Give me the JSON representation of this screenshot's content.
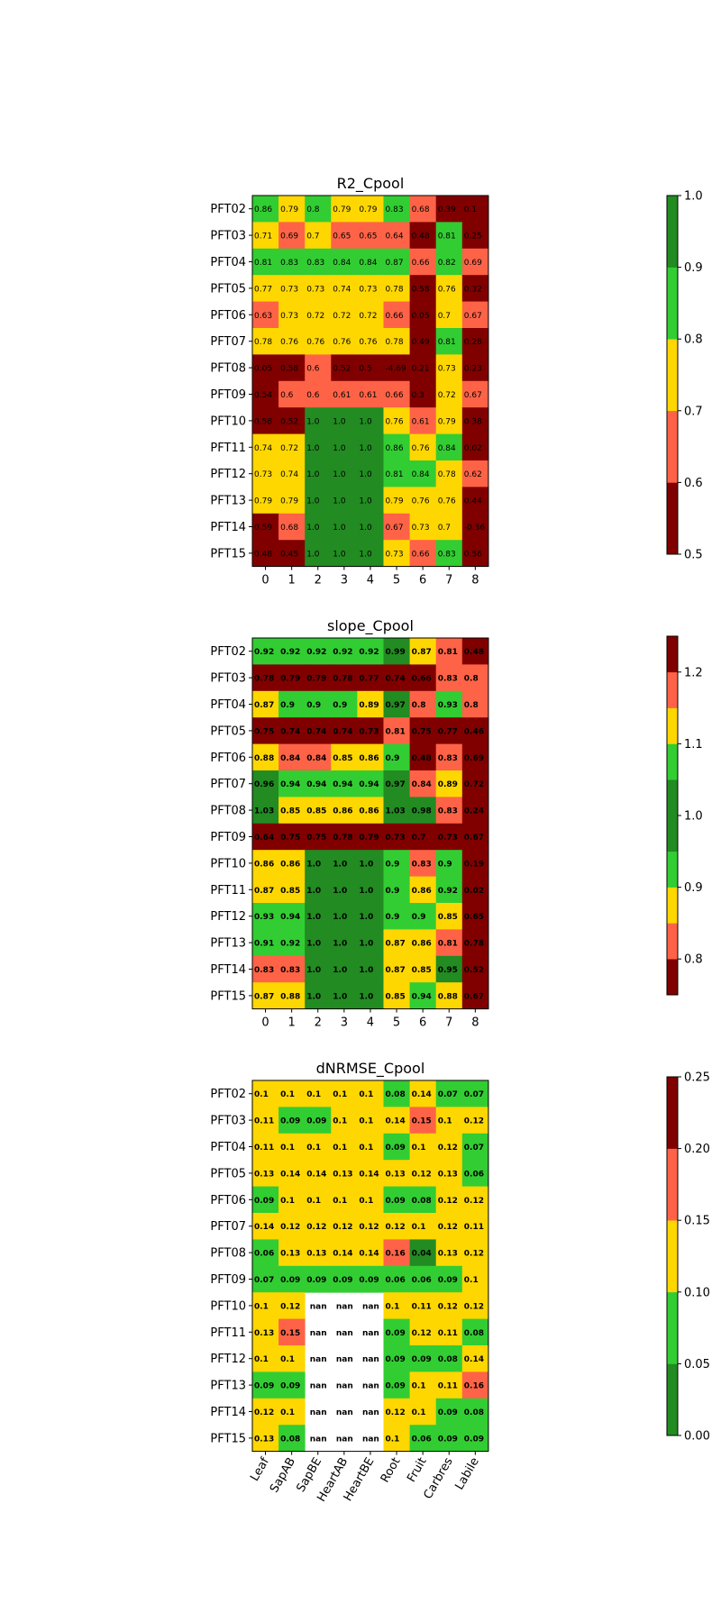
{
  "colors": {
    "dark_red": "#800000",
    "tomato": "#ff6347",
    "gold": "#ffd700",
    "lime_green": "#32cd32",
    "forest_green": "#228b22"
  },
  "chart_data": [
    {
      "type": "heatmap",
      "title": "R2_Cpool",
      "rows": [
        "PFT02",
        "PFT03",
        "PFT04",
        "PFT05",
        "PFT06",
        "PFT07",
        "PFT08",
        "PFT09",
        "PFT10",
        "PFT11",
        "PFT12",
        "PFT13",
        "PFT14",
        "PFT15"
      ],
      "columns": [
        "0",
        "1",
        "2",
        "3",
        "4",
        "5",
        "6",
        "7",
        "8"
      ],
      "values": [
        [
          0.86,
          0.79,
          0.8,
          0.79,
          0.79,
          0.83,
          0.68,
          0.39,
          0.1
        ],
        [
          0.71,
          0.69,
          0.7,
          0.65,
          0.65,
          0.64,
          0.48,
          0.81,
          0.25
        ],
        [
          0.81,
          0.83,
          0.83,
          0.84,
          0.84,
          0.87,
          0.66,
          0.82,
          0.69
        ],
        [
          0.77,
          0.73,
          0.73,
          0.74,
          0.73,
          0.78,
          0.58,
          0.76,
          0.32
        ],
        [
          0.63,
          0.73,
          0.72,
          0.72,
          0.72,
          0.66,
          0.05,
          0.7,
          0.67
        ],
        [
          0.78,
          0.76,
          0.76,
          0.76,
          0.76,
          0.78,
          0.49,
          0.81,
          0.28
        ],
        [
          0.05,
          0.58,
          0.6,
          0.52,
          0.5,
          -4.69,
          0.21,
          0.73,
          0.23
        ],
        [
          0.54,
          0.6,
          0.6,
          0.61,
          0.61,
          0.66,
          0.3,
          0.72,
          0.67
        ],
        [
          0.58,
          0.52,
          1.0,
          1.0,
          1.0,
          0.76,
          0.61,
          0.79,
          0.38
        ],
        [
          0.74,
          0.72,
          1.0,
          1.0,
          1.0,
          0.86,
          0.76,
          0.84,
          0.02
        ],
        [
          0.73,
          0.74,
          1.0,
          1.0,
          1.0,
          0.81,
          0.84,
          0.78,
          0.62
        ],
        [
          0.79,
          0.79,
          1.0,
          1.0,
          1.0,
          0.79,
          0.76,
          0.76,
          0.44
        ],
        [
          0.59,
          0.68,
          1.0,
          1.0,
          1.0,
          0.67,
          0.73,
          0.7,
          -0.36
        ],
        [
          0.48,
          0.45,
          1.0,
          1.0,
          1.0,
          0.73,
          0.66,
          0.83,
          0.56
        ]
      ],
      "labels": [
        [
          "0.86",
          "0.79",
          "0.8",
          "0.79",
          "0.79",
          "0.83",
          "0.68",
          "0.39",
          "0.1"
        ],
        [
          "0.71",
          "0.69",
          "0.7",
          "0.65",
          "0.65",
          "0.64",
          "0.48",
          "0.81",
          "0.25"
        ],
        [
          "0.81",
          "0.83",
          "0.83",
          "0.84",
          "0.84",
          "0.87",
          "0.66",
          "0.82",
          "0.69"
        ],
        [
          "0.77",
          "0.73",
          "0.73",
          "0.74",
          "0.73",
          "0.78",
          "0.58",
          "0.76",
          "0.32"
        ],
        [
          "0.63",
          "0.73",
          "0.72",
          "0.72",
          "0.72",
          "0.66",
          "0.05",
          "0.7",
          "0.67"
        ],
        [
          "0.78",
          "0.76",
          "0.76",
          "0.76",
          "0.76",
          "0.78",
          "0.49",
          "0.81",
          "0.28"
        ],
        [
          "0.05",
          "0.58",
          "0.6",
          "0.52",
          "0.5",
          "-4.69",
          "0.21",
          "0.73",
          "0.23"
        ],
        [
          "0.54",
          "0.6",
          "0.6",
          "0.61",
          "0.61",
          "0.66",
          "0.3",
          "0.72",
          "0.67"
        ],
        [
          "0.58",
          "0.52",
          "1.0",
          "1.0",
          "1.0",
          "0.76",
          "0.61",
          "0.79",
          "0.38"
        ],
        [
          "0.74",
          "0.72",
          "1.0",
          "1.0",
          "1.0",
          "0.86",
          "0.76",
          "0.84",
          "0.02"
        ],
        [
          "0.73",
          "0.74",
          "1.0",
          "1.0",
          "1.0",
          "0.81",
          "0.84",
          "0.78",
          "0.62"
        ],
        [
          "0.79",
          "0.79",
          "1.0",
          "1.0",
          "1.0",
          "0.79",
          "0.76",
          "0.76",
          "0.44"
        ],
        [
          "0.59",
          "0.68",
          "1.0",
          "1.0",
          "1.0",
          "0.67",
          "0.73",
          "0.7",
          "-0.36"
        ],
        [
          "0.48",
          "0.45",
          "1.0",
          "1.0",
          "1.0",
          "0.73",
          "0.66",
          "0.83",
          "0.56"
        ]
      ],
      "label_bold": false,
      "colorbar": {
        "bounds": [
          0.5,
          0.6,
          0.7,
          0.8,
          0.9,
          1.0
        ],
        "ticks": [
          "0.5",
          "0.6",
          "0.7",
          "0.8",
          "0.9",
          "1.0"
        ],
        "colors": [
          "#800000",
          "#ff6347",
          "#ffd700",
          "#32cd32",
          "#228b22"
        ]
      }
    },
    {
      "type": "heatmap",
      "title": "slope_Cpool",
      "rows": [
        "PFT02",
        "PFT03",
        "PFT04",
        "PFT05",
        "PFT06",
        "PFT07",
        "PFT08",
        "PFT09",
        "PFT10",
        "PFT11",
        "PFT12",
        "PFT13",
        "PFT14",
        "PFT15"
      ],
      "columns": [
        "0",
        "1",
        "2",
        "3",
        "4",
        "5",
        "6",
        "7",
        "8"
      ],
      "values": [
        [
          0.92,
          0.92,
          0.92,
          0.92,
          0.92,
          0.99,
          0.87,
          0.81,
          0.48
        ],
        [
          0.78,
          0.79,
          0.79,
          0.78,
          0.77,
          0.74,
          0.66,
          0.83,
          0.8
        ],
        [
          0.87,
          0.9,
          0.9,
          0.9,
          0.89,
          0.97,
          0.8,
          0.93,
          0.8
        ],
        [
          0.75,
          0.74,
          0.74,
          0.74,
          0.73,
          0.81,
          0.75,
          0.77,
          0.46
        ],
        [
          0.88,
          0.84,
          0.84,
          0.85,
          0.86,
          0.9,
          0.48,
          0.83,
          0.69
        ],
        [
          0.96,
          0.94,
          0.94,
          0.94,
          0.94,
          0.97,
          0.84,
          0.89,
          0.72
        ],
        [
          1.03,
          0.85,
          0.85,
          0.86,
          0.86,
          1.03,
          0.98,
          0.83,
          0.24
        ],
        [
          0.64,
          0.75,
          0.75,
          0.78,
          0.79,
          0.73,
          0.7,
          0.73,
          0.67
        ],
        [
          0.86,
          0.86,
          1.0,
          1.0,
          1.0,
          0.9,
          0.83,
          0.9,
          0.19
        ],
        [
          0.87,
          0.85,
          1.0,
          1.0,
          1.0,
          0.9,
          0.86,
          0.92,
          0.02
        ],
        [
          0.93,
          0.94,
          1.0,
          1.0,
          1.0,
          0.9,
          0.9,
          0.85,
          0.65
        ],
        [
          0.91,
          0.92,
          1.0,
          1.0,
          1.0,
          0.87,
          0.86,
          0.81,
          0.78
        ],
        [
          0.83,
          0.83,
          1.0,
          1.0,
          1.0,
          0.87,
          0.85,
          0.95,
          0.52
        ],
        [
          0.87,
          0.88,
          1.0,
          1.0,
          1.0,
          0.85,
          0.94,
          0.88,
          0.67
        ]
      ],
      "labels": [
        [
          "0.92",
          "0.92",
          "0.92",
          "0.92",
          "0.92",
          "0.99",
          "0.87",
          "0.81",
          "0.48"
        ],
        [
          "0.78",
          "0.79",
          "0.79",
          "0.78",
          "0.77",
          "0.74",
          "0.66",
          "0.83",
          "0.8"
        ],
        [
          "0.87",
          "0.9",
          "0.9",
          "0.9",
          "0.89",
          "0.97",
          "0.8",
          "0.93",
          "0.8"
        ],
        [
          "0.75",
          "0.74",
          "0.74",
          "0.74",
          "0.73",
          "0.81",
          "0.75",
          "0.77",
          "0.46"
        ],
        [
          "0.88",
          "0.84",
          "0.84",
          "0.85",
          "0.86",
          "0.9",
          "0.48",
          "0.83",
          "0.69"
        ],
        [
          "0.96",
          "0.94",
          "0.94",
          "0.94",
          "0.94",
          "0.97",
          "0.84",
          "0.89",
          "0.72"
        ],
        [
          "1.03",
          "0.85",
          "0.85",
          "0.86",
          "0.86",
          "1.03",
          "0.98",
          "0.83",
          "0.24"
        ],
        [
          "0.64",
          "0.75",
          "0.75",
          "0.78",
          "0.79",
          "0.73",
          "0.7",
          "0.73",
          "0.67"
        ],
        [
          "0.86",
          "0.86",
          "1.0",
          "1.0",
          "1.0",
          "0.9",
          "0.83",
          "0.9",
          "0.19"
        ],
        [
          "0.87",
          "0.85",
          "1.0",
          "1.0",
          "1.0",
          "0.9",
          "0.86",
          "0.92",
          "0.02"
        ],
        [
          "0.93",
          "0.94",
          "1.0",
          "1.0",
          "1.0",
          "0.9",
          "0.9",
          "0.85",
          "0.65"
        ],
        [
          "0.91",
          "0.92",
          "1.0",
          "1.0",
          "1.0",
          "0.87",
          "0.86",
          "0.81",
          "0.78"
        ],
        [
          "0.83",
          "0.83",
          "1.0",
          "1.0",
          "1.0",
          "0.87",
          "0.85",
          "0.95",
          "0.52"
        ],
        [
          "0.87",
          "0.88",
          "1.0",
          "1.0",
          "1.0",
          "0.85",
          "0.94",
          "0.88",
          "0.67"
        ]
      ],
      "label_bold": true,
      "colorbar": {
        "bounds": [
          0.75,
          0.8,
          0.85,
          0.9,
          0.95,
          1.05,
          1.1,
          1.15,
          1.2,
          1.25
        ],
        "ticks": [
          "0.8",
          "0.9",
          "1.0",
          "1.1",
          "1.2"
        ],
        "tick_values": [
          0.8,
          0.9,
          1.0,
          1.1,
          1.2
        ],
        "colors": [
          "#800000",
          "#ff6347",
          "#ffd700",
          "#32cd32",
          "#228b22",
          "#32cd32",
          "#ffd700",
          "#ff6347",
          "#800000"
        ]
      }
    },
    {
      "type": "heatmap",
      "title": "dNRMSE_Cpool",
      "rows": [
        "PFT02",
        "PFT03",
        "PFT04",
        "PFT05",
        "PFT06",
        "PFT07",
        "PFT08",
        "PFT09",
        "PFT10",
        "PFT11",
        "PFT12",
        "PFT13",
        "PFT14",
        "PFT15"
      ],
      "columns": [
        "Leaf",
        "SapAB",
        "SapBE",
        "HeartAB",
        "HeartBE",
        "Root",
        "Fruit",
        "Carbres",
        "Labile"
      ],
      "values": [
        [
          0.1,
          0.1,
          0.1,
          0.1,
          0.1,
          0.08,
          0.14,
          0.07,
          0.07
        ],
        [
          0.11,
          0.09,
          0.09,
          0.1,
          0.1,
          0.14,
          0.15,
          0.1,
          0.12
        ],
        [
          0.11,
          0.1,
          0.1,
          0.1,
          0.1,
          0.09,
          0.1,
          0.12,
          0.07
        ],
        [
          0.13,
          0.14,
          0.14,
          0.13,
          0.14,
          0.13,
          0.12,
          0.13,
          0.06
        ],
        [
          0.09,
          0.1,
          0.1,
          0.1,
          0.1,
          0.09,
          0.08,
          0.12,
          0.12
        ],
        [
          0.14,
          0.12,
          0.12,
          0.12,
          0.12,
          0.12,
          0.1,
          0.12,
          0.11
        ],
        [
          0.06,
          0.13,
          0.13,
          0.14,
          0.14,
          0.16,
          0.04,
          0.13,
          0.12
        ],
        [
          0.07,
          0.09,
          0.09,
          0.09,
          0.09,
          0.06,
          0.06,
          0.09,
          0.1
        ],
        [
          0.1,
          0.12,
          null,
          null,
          null,
          0.1,
          0.11,
          0.12,
          0.12
        ],
        [
          0.13,
          0.15,
          null,
          null,
          null,
          0.09,
          0.12,
          0.11,
          0.08
        ],
        [
          0.1,
          0.1,
          null,
          null,
          null,
          0.09,
          0.09,
          0.08,
          0.14
        ],
        [
          0.09,
          0.09,
          null,
          null,
          null,
          0.09,
          0.1,
          0.11,
          0.16
        ],
        [
          0.12,
          0.1,
          null,
          null,
          null,
          0.12,
          0.1,
          0.09,
          0.08
        ],
        [
          0.13,
          0.08,
          null,
          null,
          null,
          0.1,
          0.06,
          0.09,
          0.09
        ]
      ],
      "labels": [
        [
          "0.1",
          "0.1",
          "0.1",
          "0.1",
          "0.1",
          "0.08",
          "0.14",
          "0.07",
          "0.07"
        ],
        [
          "0.11",
          "0.09",
          "0.09",
          "0.1",
          "0.1",
          "0.14",
          "0.15",
          "0.1",
          "0.12"
        ],
        [
          "0.11",
          "0.1",
          "0.1",
          "0.1",
          "0.1",
          "0.09",
          "0.1",
          "0.12",
          "0.07"
        ],
        [
          "0.13",
          "0.14",
          "0.14",
          "0.13",
          "0.14",
          "0.13",
          "0.12",
          "0.13",
          "0.06"
        ],
        [
          "0.09",
          "0.1",
          "0.1",
          "0.1",
          "0.1",
          "0.09",
          "0.08",
          "0.12",
          "0.12"
        ],
        [
          "0.14",
          "0.12",
          "0.12",
          "0.12",
          "0.12",
          "0.12",
          "0.1",
          "0.12",
          "0.11"
        ],
        [
          "0.06",
          "0.13",
          "0.13",
          "0.14",
          "0.14",
          "0.16",
          "0.04",
          "0.13",
          "0.12"
        ],
        [
          "0.07",
          "0.09",
          "0.09",
          "0.09",
          "0.09",
          "0.06",
          "0.06",
          "0.09",
          "0.1"
        ],
        [
          "0.1",
          "0.12",
          "nan",
          "nan",
          "nan",
          "0.1",
          "0.11",
          "0.12",
          "0.12"
        ],
        [
          "0.13",
          "0.15",
          "nan",
          "nan",
          "nan",
          "0.09",
          "0.12",
          "0.11",
          "0.08"
        ],
        [
          "0.1",
          "0.1",
          "nan",
          "nan",
          "nan",
          "0.09",
          "0.09",
          "0.08",
          "0.14"
        ],
        [
          "0.09",
          "0.09",
          "nan",
          "nan",
          "nan",
          "0.09",
          "0.1",
          "0.11",
          "0.16"
        ],
        [
          "0.12",
          "0.1",
          "nan",
          "nan",
          "nan",
          "0.12",
          "0.1",
          "0.09",
          "0.08"
        ],
        [
          "0.13",
          "0.08",
          "nan",
          "nan",
          "nan",
          "0.1",
          "0.06",
          "0.09",
          "0.09"
        ]
      ],
      "label_bold": true,
      "colorbar": {
        "bounds": [
          0.0,
          0.05,
          0.1,
          0.15,
          0.2,
          0.25
        ],
        "ticks": [
          "0.00",
          "0.05",
          "0.10",
          "0.15",
          "0.20",
          "0.25"
        ],
        "colors": [
          "#228b22",
          "#32cd32",
          "#ffd700",
          "#ff6347",
          "#800000"
        ]
      }
    }
  ]
}
